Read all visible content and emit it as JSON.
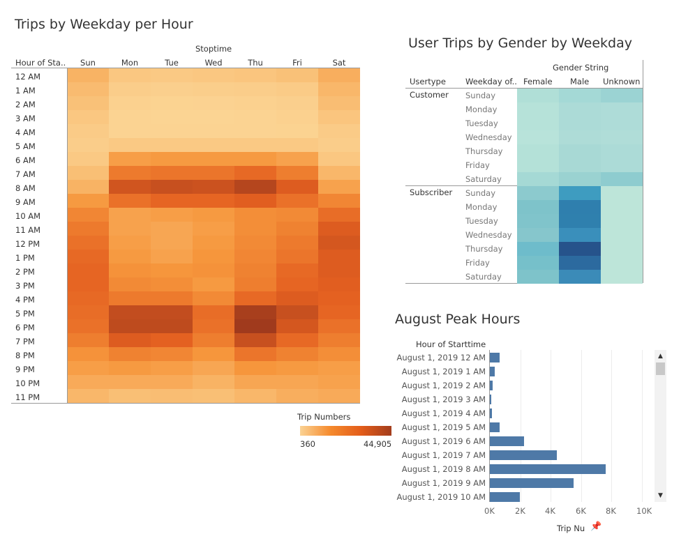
{
  "heatmap": {
    "title": "Trips by Weekday per Hour",
    "column_group_label": "Stoptime",
    "row_header": "Hour of Sta..",
    "legend": {
      "title": "Trip Numbers",
      "min_label": "360",
      "max_label": "44,905",
      "min": 360,
      "max": 44905
    },
    "color_low": "#fbd293",
    "color_high": "#a33d1d",
    "chart_data": {
      "type": "heatmap",
      "x": [
        "Sun",
        "Mon",
        "Tue",
        "Wed",
        "Thu",
        "Fri",
        "Sat"
      ],
      "y": [
        "12 AM",
        "1 AM",
        "2 AM",
        "3 AM",
        "4 AM",
        "5 AM",
        "6 AM",
        "7 AM",
        "8 AM",
        "9 AM",
        "10 AM",
        "11 AM",
        "12 PM",
        "1 PM",
        "2 PM",
        "3 PM",
        "4 PM",
        "5 PM",
        "6 PM",
        "7 PM",
        "8 PM",
        "9 PM",
        "10 PM",
        "11 PM"
      ],
      "values": [
        [
          9000,
          4000,
          3500,
          4000,
          4500,
          5500,
          10000
        ],
        [
          7000,
          2500,
          2000,
          2200,
          2500,
          3000,
          8000
        ],
        [
          5500,
          1500,
          1200,
          1300,
          1500,
          2000,
          6500
        ],
        [
          4000,
          1000,
          900,
          900,
          1000,
          1500,
          4500
        ],
        [
          3000,
          1000,
          1000,
          1000,
          1100,
          1200,
          3000
        ],
        [
          2500,
          3500,
          3500,
          3500,
          3500,
          3500,
          2500
        ],
        [
          3500,
          14000,
          15000,
          15000,
          15000,
          13000,
          4000
        ],
        [
          6000,
          23000,
          24000,
          24000,
          27000,
          22000,
          8000
        ],
        [
          9000,
          34000,
          36000,
          35000,
          40000,
          31000,
          13000
        ],
        [
          15000,
          25000,
          28000,
          28000,
          30000,
          25000,
          20000
        ],
        [
          20000,
          13000,
          14000,
          15000,
          18000,
          19000,
          26000
        ],
        [
          23000,
          13000,
          12000,
          14000,
          18000,
          21000,
          31000
        ],
        [
          25000,
          14000,
          12000,
          15000,
          19000,
          23000,
          33000
        ],
        [
          27000,
          15000,
          13000,
          16000,
          20000,
          24000,
          31000
        ],
        [
          28000,
          17000,
          16000,
          17000,
          21000,
          27000,
          31000
        ],
        [
          28000,
          19000,
          18000,
          15000,
          22000,
          28000,
          30000
        ],
        [
          27000,
          23000,
          23000,
          19000,
          27000,
          31000,
          29000
        ],
        [
          26000,
          37000,
          37000,
          26000,
          43000,
          36000,
          28000
        ],
        [
          25000,
          38000,
          38000,
          25000,
          44905,
          33000,
          25000
        ],
        [
          22000,
          31000,
          29000,
          22000,
          36000,
          27000,
          22000
        ],
        [
          17000,
          21000,
          20000,
          16000,
          24000,
          21000,
          18000
        ],
        [
          14000,
          15000,
          14000,
          12000,
          16000,
          15000,
          14000
        ],
        [
          11000,
          11000,
          11000,
          9000,
          12000,
          12000,
          13000
        ],
        [
          8000,
          6000,
          6500,
          6000,
          8000,
          10000,
          11000
        ]
      ]
    }
  },
  "gender": {
    "title": "User Trips by Gender by Weekday",
    "column_group_label": "Gender String",
    "headers": {
      "usertype": "Usertype",
      "weekday": "Weekday of..",
      "female": "Female",
      "male": "Male",
      "unknown": "Unknown"
    },
    "groups": [
      {
        "label": "Customer",
        "days": [
          "Sunday",
          "Monday",
          "Tuesday",
          "Wednesday",
          "Thursday",
          "Friday",
          "Saturday"
        ]
      },
      {
        "label": "Subscriber",
        "days": [
          "Sunday",
          "Monday",
          "Tuesday",
          "Wednesday",
          "Thursday",
          "Friday",
          "Saturday"
        ]
      }
    ],
    "cell_colors": [
      [
        "#b0dfd7",
        "#a4d9d6",
        "#9bd3d3"
      ],
      [
        "#b6e2d9",
        "#acdbd7",
        "#aedcd8"
      ],
      [
        "#b6e2d9",
        "#acdbd7",
        "#aedcd8"
      ],
      [
        "#b8e3da",
        "#aedcd7",
        "#b0ddd8"
      ],
      [
        "#b4e1d8",
        "#a8d9d5",
        "#acdbd7"
      ],
      [
        "#b4e1d8",
        "#a8d9d5",
        "#acdbd7"
      ],
      [
        "#a5d9d5",
        "#9ad2d1",
        "#8ecccf"
      ],
      [
        "#8ccace",
        "#3e9cc0",
        "#bde5d9"
      ],
      [
        "#7ec3ca",
        "#2f7fae",
        "#bde5d9"
      ],
      [
        "#80c4cb",
        "#2f80ae",
        "#bde5d9"
      ],
      [
        "#86c6cc",
        "#3a8fbb",
        "#bde5d9"
      ],
      [
        "#6ebccb",
        "#26538b",
        "#bde5d9"
      ],
      [
        "#76c0ca",
        "#2c6a9f",
        "#bde5d9"
      ],
      [
        "#7ec3ca",
        "#3b8bb8",
        "#bde5d9"
      ]
    ]
  },
  "peak": {
    "title": "August Peak Hours",
    "row_header": "Hour of Starttime",
    "x_axis_title": "Trip Nu",
    "x_ticks": [
      "0K",
      "2K",
      "4K",
      "6K",
      "8K",
      "10K"
    ],
    "bar_color": "#4e79a7",
    "chart_data": {
      "type": "bar",
      "orientation": "horizontal",
      "categories": [
        "August 1, 2019 12 AM",
        "August 1, 2019 1 AM",
        "August 1, 2019 2 AM",
        "August 1, 2019 3 AM",
        "August 1, 2019 4 AM",
        "August 1, 2019 5 AM",
        "August 1, 2019 6 AM",
        "August 1, 2019 7 AM",
        "August 1, 2019 8 AM",
        "August 1, 2019 9 AM",
        "August 1, 2019 10 AM"
      ],
      "values": [
        650,
        300,
        200,
        100,
        150,
        650,
        2250,
        4400,
        7600,
        5500,
        1950
      ],
      "xlim": [
        0,
        10000
      ]
    }
  }
}
